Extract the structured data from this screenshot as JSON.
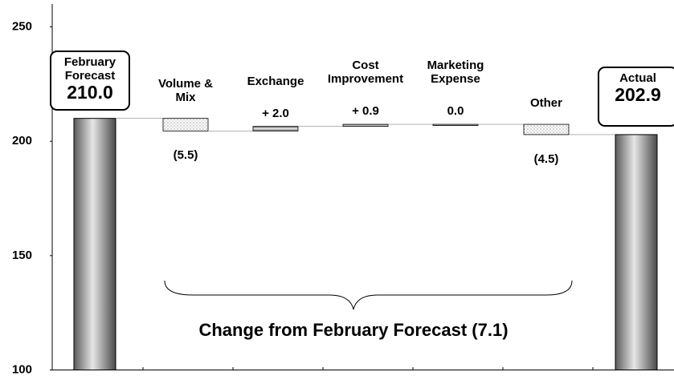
{
  "chart_data": {
    "type": "waterfall",
    "categories": [
      "February Forecast",
      "Volume & Mix",
      "Exchange",
      "Cost Improvement",
      "Marketing Expense",
      "Other",
      "Actual"
    ],
    "values": [
      210.0,
      -5.5,
      2.0,
      0.9,
      0.0,
      -4.5,
      202.9
    ],
    "value_labels": [
      "210.0",
      "(5.5)",
      "+ 2.0",
      "+ 0.9",
      "0.0",
      "(4.5)",
      "202.9"
    ],
    "ylim": [
      100,
      260
    ],
    "yticks": [
      100,
      150,
      200,
      250
    ],
    "annotation": "Change from February Forecast  (7.1)"
  }
}
